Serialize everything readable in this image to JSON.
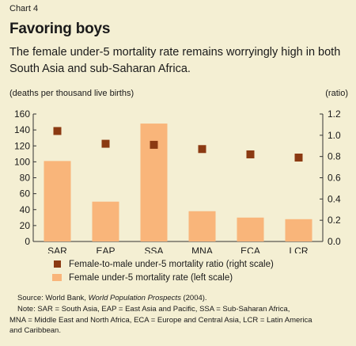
{
  "chart_label": "Chart 4",
  "title": "Favoring boys",
  "subtitle": "The female under-5 mortality rate remains worryingly high in both South Asia and sub-Saharan Africa.",
  "left_axis_label": "(deaths per thousand live births)",
  "right_axis_label": "(ratio)",
  "legend": {
    "ratio": "Female-to-male under-5 mortality ratio  (right scale)",
    "rate": "Female under-5 mortality rate (left scale)"
  },
  "source": {
    "prefix": "Source: World Bank, ",
    "italic": "World Population Prospects",
    "suffix": " (2004)."
  },
  "note": {
    "line1": "Note: SAR = South Asia, EAP = East Asia and Pacific, SSA = Sub-Saharan Africa,",
    "line2": "MNA = Middle East and North Africa, ECA = Europe and Central Asia, LCR = Latin America",
    "line3": "and Caribbean."
  },
  "chart_data": {
    "type": "bar",
    "categories": [
      "SAR",
      "EAP",
      "SSA",
      "MNA",
      "ECA",
      "LCR"
    ],
    "series": [
      {
        "name": "Female under-5 mortality rate (left scale)",
        "type": "bar",
        "axis": "left",
        "values": [
          101,
          50,
          148,
          38,
          30,
          28
        ]
      },
      {
        "name": "Female-to-male under-5 mortality ratio  (right scale)",
        "type": "scatter",
        "axis": "right",
        "values": [
          1.04,
          0.92,
          0.91,
          0.87,
          0.82,
          0.79
        ]
      }
    ],
    "left_ylim": [
      0,
      160
    ],
    "left_ticks": [
      0,
      20,
      40,
      60,
      80,
      100,
      120,
      140,
      160
    ],
    "right_ylim": [
      0,
      1.2
    ],
    "right_ticks": [
      "0.0",
      "0.2",
      "0.4",
      "0.6",
      "0.8",
      "1.0",
      "1.2"
    ],
    "grid": false,
    "legend_position": "bottom-left",
    "colors": {
      "bar": "#f9b57a",
      "marker": "#8b3a12",
      "axis": "#333333"
    }
  }
}
